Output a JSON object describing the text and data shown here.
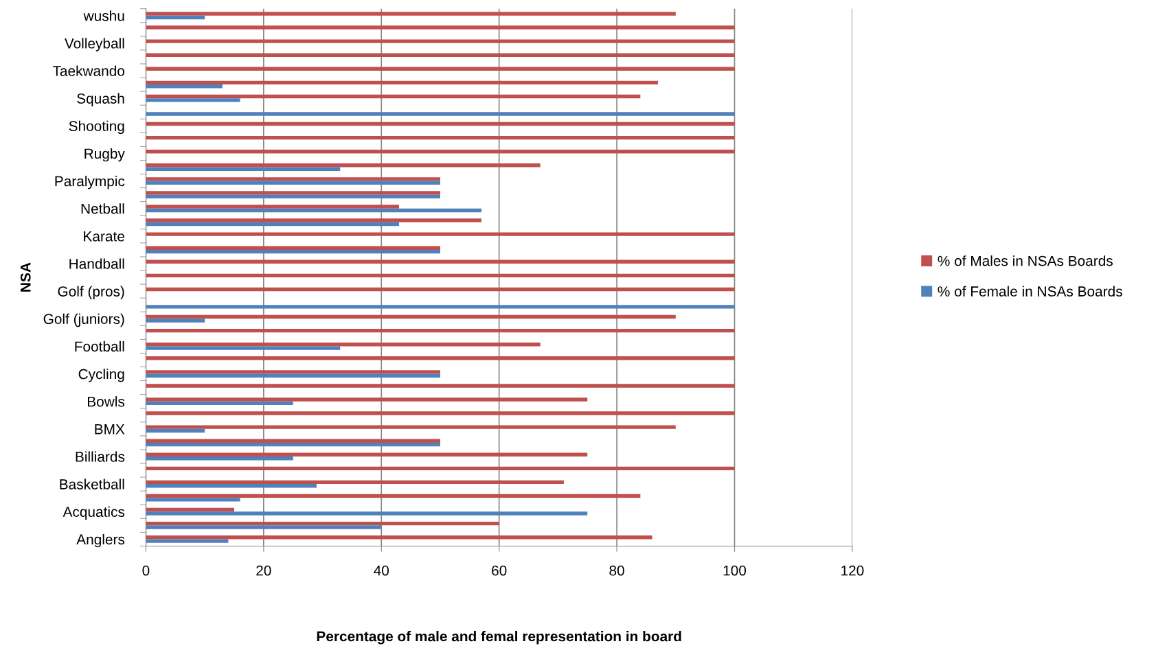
{
  "chart_data": {
    "type": "bar",
    "orientation": "horizontal",
    "ylabel": "NSA",
    "xlabel": "Percentage of male and femal representation in board",
    "categories": [
      "wushu",
      null,
      "Volleyball",
      null,
      "Taekwando",
      null,
      "Squash",
      null,
      "Shooting",
      null,
      "Rugby",
      null,
      "Paralympic",
      null,
      "Netball",
      null,
      "Karate",
      null,
      "Handball",
      null,
      "Golf (pros)",
      null,
      "Golf (juniors)",
      null,
      "Football",
      null,
      "Cycling",
      null,
      "Bowls",
      null,
      "BMX",
      null,
      "Billiards",
      null,
      "Basketball",
      null,
      "Acquatics",
      null,
      "Anglers"
    ],
    "series": [
      {
        "name": "% of Males in NSAs Boards",
        "color": "#c0504d",
        "values": [
          90,
          100,
          100,
          100,
          100,
          87,
          84,
          0,
          100,
          100,
          100,
          67,
          50,
          50,
          43,
          57,
          100,
          50,
          100,
          100,
          100,
          0,
          90,
          100,
          67,
          100,
          50,
          100,
          75,
          100,
          90,
          50,
          75,
          100,
          71,
          84,
          15,
          60,
          86
        ]
      },
      {
        "name": "% of Female in NSAs Boards",
        "color": "#4f81bd",
        "values": [
          10,
          0,
          0,
          0,
          0,
          13,
          16,
          100,
          0,
          0,
          0,
          33,
          50,
          50,
          57,
          43,
          0,
          50,
          0,
          0,
          0,
          100,
          10,
          0,
          33,
          0,
          50,
          0,
          25,
          0,
          10,
          50,
          25,
          0,
          29,
          16,
          75,
          40,
          14
        ]
      }
    ],
    "xlim": [
      0,
      120
    ],
    "xticks": [
      0,
      20,
      40,
      60,
      80,
      100,
      120
    ],
    "grid": "x",
    "legend": "right"
  }
}
